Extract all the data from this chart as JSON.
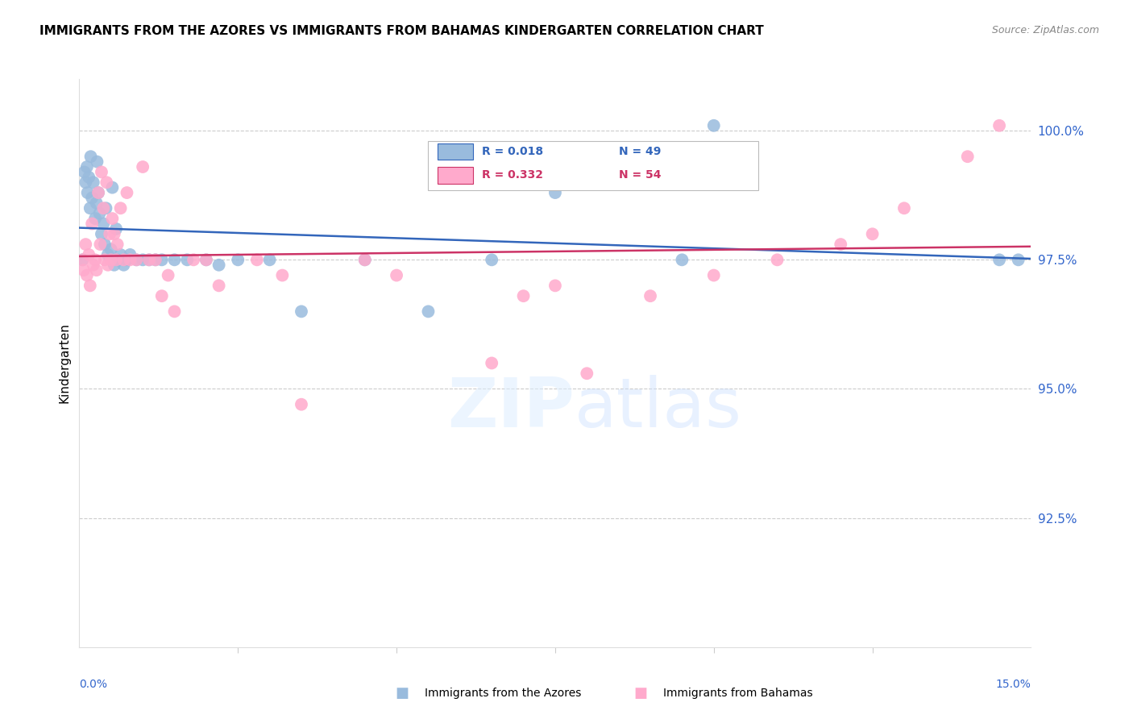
{
  "title": "IMMIGRANTS FROM THE AZORES VS IMMIGRANTS FROM BAHAMAS KINDERGARTEN CORRELATION CHART",
  "source": "Source: ZipAtlas.com",
  "ylabel": "Kindergarten",
  "x_range": [
    0.0,
    15.0
  ],
  "y_range": [
    90.0,
    101.0
  ],
  "azores_color": "#99BBDD",
  "bahamas_color": "#FFAACC",
  "azores_line_color": "#3366BB",
  "bahamas_line_color": "#CC3366",
  "legend_azores_R": "0.018",
  "legend_azores_N": "49",
  "legend_bahamas_R": "0.332",
  "legend_bahamas_N": "54",
  "y_ticks": [
    92.5,
    95.0,
    97.5,
    100.0
  ],
  "y_tick_labels": [
    "92.5%",
    "95.0%",
    "97.5%",
    "100.0%"
  ],
  "azores_x": [
    0.05,
    0.08,
    0.1,
    0.12,
    0.13,
    0.15,
    0.17,
    0.18,
    0.2,
    0.22,
    0.25,
    0.27,
    0.28,
    0.3,
    0.32,
    0.35,
    0.38,
    0.4,
    0.42,
    0.45,
    0.5,
    0.52,
    0.55,
    0.58,
    0.6,
    0.65,
    0.7,
    0.75,
    0.8,
    0.9,
    1.0,
    1.1,
    1.2,
    1.3,
    1.5,
    1.7,
    2.0,
    2.2,
    2.5,
    3.0,
    3.5,
    4.5,
    5.5,
    6.5,
    7.5,
    9.5,
    10.0,
    14.5,
    14.8
  ],
  "azores_y": [
    97.5,
    99.2,
    99.0,
    99.3,
    98.8,
    99.1,
    98.5,
    99.5,
    98.7,
    99.0,
    98.3,
    98.6,
    99.4,
    98.8,
    98.4,
    98.0,
    98.2,
    97.8,
    98.5,
    97.6,
    97.7,
    98.9,
    97.4,
    98.1,
    97.5,
    97.6,
    97.4,
    97.5,
    97.6,
    97.5,
    97.5,
    97.5,
    97.5,
    97.5,
    97.5,
    97.5,
    97.5,
    97.4,
    97.5,
    97.5,
    96.5,
    97.5,
    96.5,
    97.5,
    98.8,
    97.5,
    100.1,
    97.5,
    97.5
  ],
  "bahamas_x": [
    0.05,
    0.07,
    0.1,
    0.12,
    0.15,
    0.17,
    0.2,
    0.22,
    0.25,
    0.27,
    0.3,
    0.33,
    0.35,
    0.38,
    0.4,
    0.43,
    0.45,
    0.48,
    0.5,
    0.52,
    0.55,
    0.58,
    0.6,
    0.65,
    0.7,
    0.75,
    0.8,
    0.9,
    1.0,
    1.1,
    1.2,
    1.3,
    1.4,
    1.5,
    1.8,
    2.0,
    2.2,
    2.8,
    3.2,
    3.5,
    4.5,
    5.0,
    6.5,
    7.0,
    7.5,
    8.0,
    9.0,
    10.0,
    11.0,
    12.0,
    12.5,
    13.0,
    14.0,
    14.5
  ],
  "bahamas_y": [
    97.5,
    97.3,
    97.8,
    97.2,
    97.6,
    97.0,
    98.2,
    97.4,
    97.5,
    97.3,
    98.8,
    97.8,
    99.2,
    98.5,
    97.5,
    99.0,
    97.4,
    98.0,
    97.5,
    98.3,
    98.0,
    97.5,
    97.8,
    98.5,
    97.5,
    98.8,
    97.5,
    97.5,
    99.3,
    97.5,
    97.5,
    96.8,
    97.2,
    96.5,
    97.5,
    97.5,
    97.0,
    97.5,
    97.2,
    94.7,
    97.5,
    97.2,
    95.5,
    96.8,
    97.0,
    95.3,
    96.8,
    97.2,
    97.5,
    97.8,
    98.0,
    98.5,
    99.5,
    100.1
  ]
}
